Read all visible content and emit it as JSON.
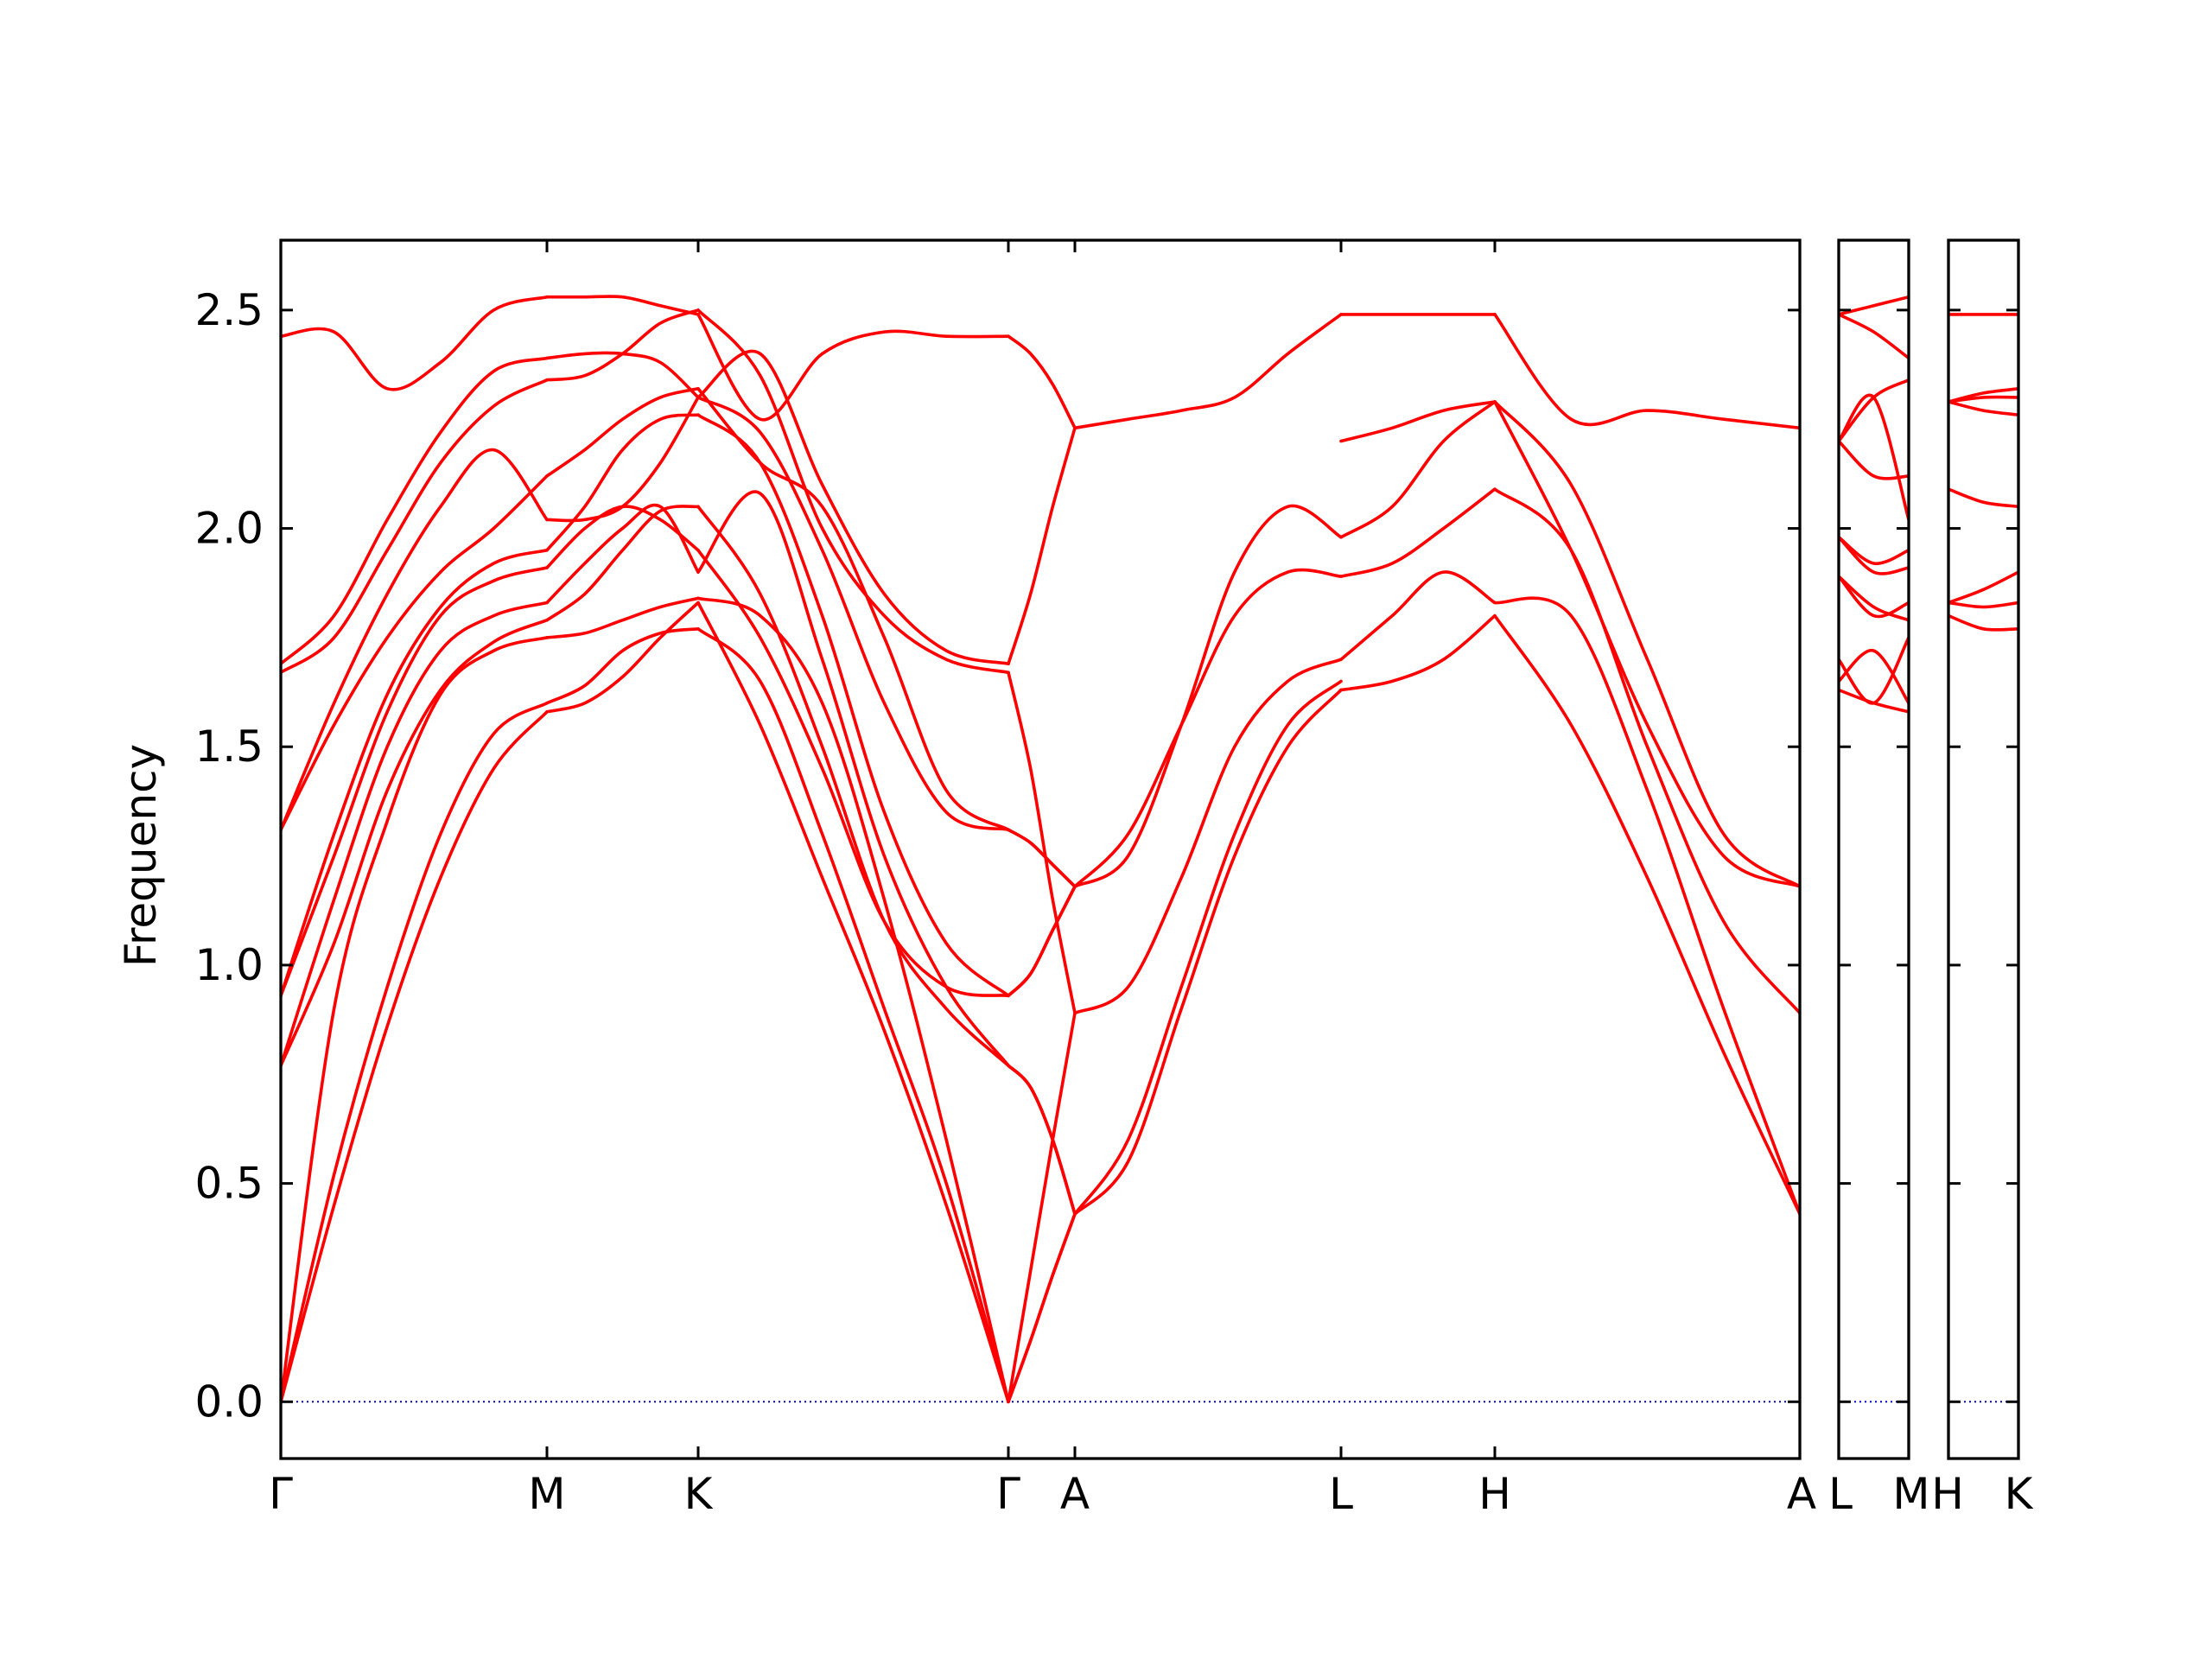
{
  "chart_data": {
    "type": "line",
    "ylabel": "Frequency",
    "xlabel": "",
    "ylim": [
      -0.13,
      2.66
    ],
    "yticks": [
      0.0,
      0.5,
      1.0,
      1.5,
      2.0,
      2.5
    ],
    "ytick_labels": [
      "0.0",
      "0.5",
      "1.0",
      "1.5",
      "2.0",
      "2.5"
    ],
    "grid": false,
    "line_color": "#ff0000",
    "zero_line_color": "#0000cc",
    "panels": [
      {
        "path": "Γ-M-K-Γ-A-L-H-A",
        "segments": [
          {
            "from": "Γ",
            "to": "M",
            "branches": [
              [
                0.0,
                0.45,
                0.86,
                1.2,
                1.45,
                1.58
              ],
              [
                0.0,
                0.52,
                0.95,
                1.3,
                1.53,
                1.6
              ],
              [
                0.0,
                0.9,
                1.33,
                1.62,
                1.72,
                1.75
              ],
              [
                0.77,
                1.05,
                1.4,
                1.63,
                1.74,
                1.79
              ],
              [
                0.77,
                1.15,
                1.5,
                1.72,
                1.8,
                1.83
              ],
              [
                0.93,
                1.25,
                1.58,
                1.8,
                1.88,
                1.91
              ],
              [
                0.93,
                1.3,
                1.62,
                1.82,
                1.92,
                1.95
              ],
              [
                1.31,
                1.55,
                1.75,
                1.9,
                2.0,
                2.12
              ],
              [
                1.31,
                1.6,
                1.85,
                2.05,
                2.18,
                2.02
              ],
              [
                1.67,
                1.75,
                1.95,
                2.15,
                2.28,
                2.34
              ],
              [
                1.69,
                1.8,
                2.02,
                2.22,
                2.36,
                2.39
              ],
              [
                2.44,
                2.45,
                2.32,
                2.38,
                2.5,
                2.53
              ]
            ]
          },
          {
            "from": "M",
            "to": "K",
            "branches": [
              [
                1.58,
                1.6,
                1.66,
                1.75,
                1.83
              ],
              [
                1.6,
                1.64,
                1.72,
                1.76,
                1.77
              ],
              [
                1.75,
                1.76,
                1.79,
                1.82,
                1.84
              ],
              [
                1.79,
                1.85,
                1.95,
                2.04,
                2.05
              ],
              [
                1.83,
                1.92,
                2.0,
                2.05,
                1.9
              ],
              [
                1.91,
                2.0,
                2.05,
                2.02,
                1.95
              ],
              [
                1.95,
                2.05,
                2.18,
                2.25,
                2.26
              ],
              [
                2.02,
                2.02,
                2.05,
                2.15,
                2.3
              ],
              [
                2.12,
                2.18,
                2.25,
                2.3,
                2.32
              ],
              [
                2.34,
                2.35,
                2.4,
                2.47,
                2.5
              ],
              [
                2.39,
                2.4,
                2.4,
                2.38,
                2.3
              ],
              [
                2.53,
                2.53,
                2.53,
                2.51,
                2.49
              ]
            ]
          },
          {
            "from": "K",
            "to": "Γ",
            "branches": [
              [
                1.83,
                1.55,
                1.2,
                0.85,
                0.45,
                0.0
              ],
              [
                1.77,
                1.65,
                1.3,
                0.9,
                0.5,
                0.0
              ],
              [
                1.84,
                1.8,
                1.6,
                1.15,
                0.6,
                0.0
              ],
              [
                2.05,
                1.85,
                1.5,
                1.1,
                0.9,
                0.77
              ],
              [
                1.9,
                2.08,
                1.7,
                1.25,
                0.95,
                0.77
              ],
              [
                1.95,
                1.75,
                1.45,
                1.1,
                0.95,
                0.93
              ],
              [
                2.26,
                2.15,
                1.8,
                1.35,
                1.05,
                0.93
              ],
              [
                2.3,
                2.22,
                1.95,
                1.6,
                1.35,
                1.31
              ],
              [
                2.32,
                2.15,
                2.05,
                1.75,
                1.4,
                1.31
              ],
              [
                2.5,
                2.35,
                2.0,
                1.8,
                1.7,
                1.67
              ],
              [
                2.3,
                2.4,
                2.1,
                1.85,
                1.72,
                1.69
              ],
              [
                2.49,
                2.25,
                2.4,
                2.45,
                2.44,
                2.44
              ]
            ]
          },
          {
            "from": "Γ",
            "to": "A",
            "branches": [
              [
                0.0,
                0.14,
                0.29,
                0.43
              ],
              [
                0.0,
                0.14,
                0.29,
                0.43
              ],
              [
                0.0,
                0.3,
                0.6,
                0.89
              ],
              [
                0.77,
                0.72,
                0.6,
                0.43
              ],
              [
                0.77,
                0.72,
                0.6,
                0.43
              ],
              [
                0.93,
                0.98,
                1.08,
                1.18
              ],
              [
                0.93,
                0.98,
                1.08,
                1.18
              ],
              [
                1.31,
                1.28,
                1.23,
                1.18
              ],
              [
                1.31,
                1.28,
                1.23,
                1.18
              ],
              [
                1.67,
                1.45,
                1.15,
                0.89
              ],
              [
                1.69,
                1.85,
                2.05,
                2.23
              ],
              [
                2.44,
                2.4,
                2.33,
                2.23
              ]
            ]
          },
          {
            "from": "A",
            "to": "L",
            "branches": [
              [
                0.43,
                0.55,
                0.9,
                1.25,
                1.5,
                1.63
              ],
              [
                0.43,
                0.6,
                0.95,
                1.3,
                1.55,
                1.65
              ],
              [
                0.89,
                0.95,
                1.2,
                1.5,
                1.65,
                1.7
              ],
              [
                1.18,
                1.3,
                1.55,
                1.8,
                1.9,
                1.89
              ],
              [
                1.18,
                1.25,
                1.55,
                1.9,
                2.05,
                1.98
              ],
              [
                2.23,
                2.25,
                2.27,
                2.3,
                2.4,
                2.49
              ]
            ]
          },
          {
            "from": "L",
            "to": "H",
            "branches": [
              [
                1.63,
                1.65,
                1.7,
                1.8
              ],
              [
                1.7,
                1.8,
                1.9,
                1.83
              ],
              [
                1.89,
                1.92,
                2.0,
                2.09
              ],
              [
                1.98,
                2.05,
                2.2,
                2.29
              ],
              [
                2.2,
                2.23,
                2.27,
                2.29
              ],
              [
                2.49,
                2.49,
                2.49,
                2.49
              ]
            ]
          },
          {
            "from": "H",
            "to": "A",
            "branches": [
              [
                1.8,
                1.55,
                1.2,
                0.8,
                0.43
              ],
              [
                1.83,
                1.8,
                1.4,
                0.9,
                0.43
              ],
              [
                2.09,
                1.95,
                1.5,
                1.1,
                0.89
              ],
              [
                2.29,
                1.95,
                1.55,
                1.25,
                1.18
              ],
              [
                2.29,
                2.1,
                1.7,
                1.3,
                1.18
              ],
              [
                2.49,
                2.25,
                2.27,
                2.25,
                2.23
              ]
            ]
          }
        ]
      },
      {
        "path": "L-M",
        "segments": [
          {
            "from": "L",
            "to": "M",
            "branches": [
              [
                1.63,
                1.6,
                1.58
              ],
              [
                1.65,
                1.72,
                1.6
              ],
              [
                1.7,
                1.6,
                1.75
              ],
              [
                1.89,
                1.82,
                1.79
              ],
              [
                1.89,
                1.8,
                1.83
              ],
              [
                1.98,
                1.9,
                1.91
              ],
              [
                1.98,
                1.92,
                1.95
              ],
              [
                2.2,
                2.12,
                2.12
              ],
              [
                2.2,
                2.3,
                2.02
              ],
              [
                2.2,
                2.3,
                2.34
              ],
              [
                2.49,
                2.45,
                2.39
              ],
              [
                2.49,
                2.51,
                2.53
              ]
            ]
          }
        ]
      },
      {
        "path": "H-K",
        "segments": [
          {
            "from": "H",
            "to": "K",
            "branches": [
              [
                1.8,
                1.77,
                1.77
              ],
              [
                1.83,
                1.82,
                1.83
              ],
              [
                1.83,
                1.86,
                1.9
              ],
              [
                2.09,
                2.06,
                2.05
              ],
              [
                2.29,
                2.27,
                2.26
              ],
              [
                2.29,
                2.3,
                2.3
              ],
              [
                2.29,
                2.31,
                2.32
              ],
              [
                2.49,
                2.49,
                2.49
              ]
            ]
          }
        ]
      }
    ],
    "xtick_labels": [
      "Γ",
      "M",
      "K",
      "Γ",
      "A",
      "L",
      "H",
      "A",
      "L",
      "M",
      "H",
      "K"
    ]
  }
}
